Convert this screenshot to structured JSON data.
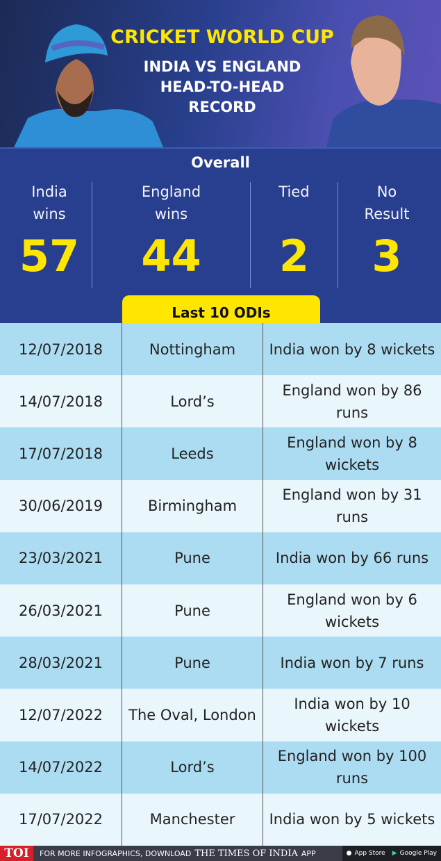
{
  "header": {
    "title": "CRICKET WORLD CUP",
    "subtitle_lines": [
      "INDIA VS ENGLAND",
      "HEAD-TO-HEAD",
      "RECORD"
    ]
  },
  "overall": {
    "label": "Overall",
    "stats": [
      {
        "label1": "India",
        "label2": "wins",
        "value": "57"
      },
      {
        "label1": "England",
        "label2": "wins",
        "value": "44"
      },
      {
        "label1": "Tied",
        "label2": "",
        "value": "2"
      },
      {
        "label1": "No",
        "label2": "Result",
        "value": "3"
      }
    ]
  },
  "last10": {
    "label": "Last 10 ODIs",
    "rows": [
      {
        "date": "12/07/2018",
        "venue": "Nottingham",
        "result": "India won by 8 wickets"
      },
      {
        "date": "14/07/2018",
        "venue": "Lord’s",
        "result": "England won by 86 runs"
      },
      {
        "date": "17/07/2018",
        "venue": "Leeds",
        "result": "England won by 8 wickets"
      },
      {
        "date": "30/06/2019",
        "venue": "Birmingham",
        "result": "England won by 31 runs"
      },
      {
        "date": "23/03/2021",
        "venue": "Pune",
        "result": "India won by 66 runs"
      },
      {
        "date": "26/03/2021",
        "venue": "Pune",
        "result": "England won by 6 wickets"
      },
      {
        "date": "28/03/2021",
        "venue": "Pune",
        "result": "India won by 7 runs"
      },
      {
        "date": "12/07/2022",
        "venue": "The Oval, London",
        "result": "India won by 10 wickets"
      },
      {
        "date": "14/07/2022",
        "venue": "Lord’s",
        "result": "England won by 100 runs"
      },
      {
        "date": "17/07/2022",
        "venue": "Manchester",
        "result": "India won by 5 wickets"
      }
    ]
  },
  "footer": {
    "logo": "TOI",
    "text": "FOR MORE INFOGRAPHICS, DOWNLOAD",
    "brand": "THE TIMES OF INDIA",
    "app": "APP",
    "app_store": "App Store",
    "google_play": "Google Play"
  },
  "colors": {
    "header_bg": "#283f8c",
    "stats_bg": "#283f8f",
    "accent_yellow": "#ffe600",
    "row_dark": "#acdcf2",
    "row_light": "#e9f6fc",
    "toi_red": "#d8202a"
  }
}
